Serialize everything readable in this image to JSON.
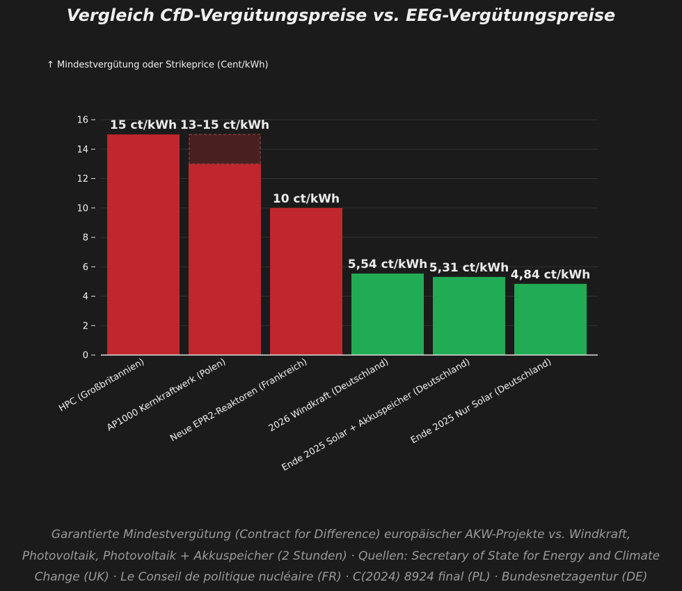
{
  "chart_data": {
    "type": "bar",
    "title": "Vergleich CfD-Vergütungspreise vs. EEG-Vergütungspreise",
    "ylabel": "↑ Mindestvergütung oder Strikeprice (Cent/kWh)",
    "xlabel": "",
    "ylim": [
      0,
      16
    ],
    "yticks": [
      0,
      2,
      4,
      6,
      8,
      10,
      12,
      14,
      16
    ],
    "grid": true,
    "categories": [
      "HPC (Großbritannien)",
      "AP1000 Kernkraftwerk (Polen)",
      "Neue EPR2-Reaktoren (Frankreich)",
      "2026 Windkraft (Deutschland)",
      "Ende 2025 Solar + Akkuspeicher (Deutschland)",
      "Ende 2025 Nur Solar (Deutschland)"
    ],
    "values": [
      15,
      13,
      10,
      5.54,
      5.31,
      4.84
    ],
    "range_max": [
      null,
      15,
      null,
      null,
      null,
      null
    ],
    "data_labels": [
      "15 ct/kWh",
      "13–15 ct/kWh",
      "10 ct/kWh",
      "5,54 ct/kWh",
      "5,31 ct/kWh",
      "4,84 ct/kWh"
    ],
    "colors": [
      "#c0272d",
      "#c0272d",
      "#c0272d",
      "#22ab55",
      "#22ab55",
      "#22ab55"
    ],
    "range_color": "#4a1f20"
  },
  "footnote": {
    "lines": [
      "Garantierte Mindestvergütung (Contract for Difference) europäischer AKW-Projekte vs. Windkraft,",
      "Photovoltaik, Photovoltaik + Akkuspeicher (2 Stunden) · Quellen: Secretary of State for Energy and Climate",
      "Change (UK) · Le Conseil de politique nucléaire (FR) · C(2024) 8924 final (PL) · Bundesnetzagentur (DE)"
    ]
  },
  "colors": {
    "background": "#1b1b1b",
    "grid": "#333333",
    "axis": "#e0e0e0"
  }
}
